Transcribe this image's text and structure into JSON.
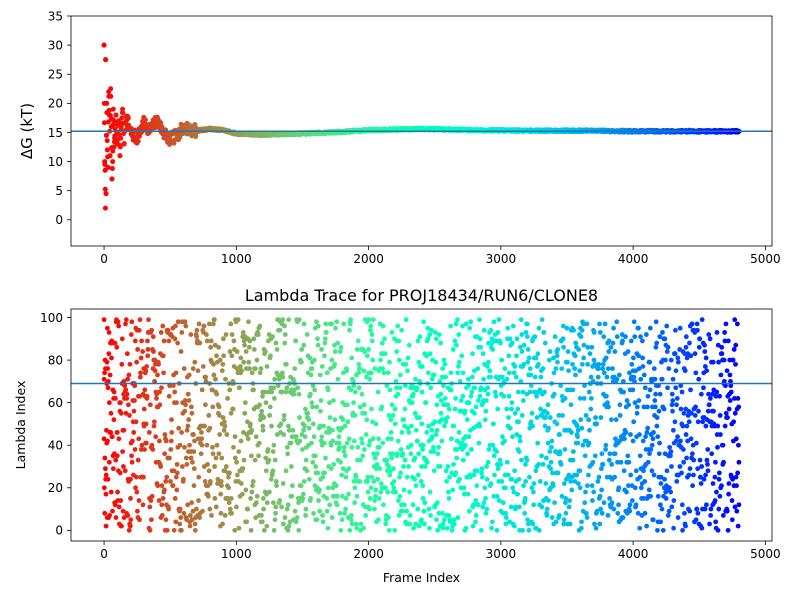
{
  "chart_data": [
    {
      "type": "scatter",
      "title": "",
      "xlabel": "",
      "ylabel": "ΔG (kT)",
      "xlim": [
        -250,
        5050
      ],
      "ylim": [
        -4.5,
        35
      ],
      "xticks": [
        0,
        1000,
        2000,
        3000,
        4000,
        5000
      ],
      "xtick_labels": [
        "0",
        "1000",
        "2000",
        "3000",
        "4000",
        "5000"
      ],
      "yticks": [
        0,
        5,
        10,
        15,
        20,
        25,
        30,
        35
      ],
      "ytick_labels": [
        "0",
        "5",
        "10",
        "15",
        "20",
        "25",
        "30",
        "35"
      ],
      "grid": false,
      "colormap": "rainbow (reversed: red at frame 0, purple at last frame)",
      "frames": 4800,
      "hline": {
        "y": 15.2,
        "color": "#1f77b4"
      },
      "series": [
        {
          "description": "running free-energy estimate, converging toward the horizontal line",
          "points": [
            [
              0,
              30
            ],
            [
              2,
              20
            ],
            [
              5,
              10
            ],
            [
              8,
              8.5
            ],
            [
              10,
              2
            ],
            [
              12,
              27.5
            ],
            [
              15,
              4.5
            ],
            [
              18,
              14.5
            ],
            [
              20,
              20
            ],
            [
              25,
              12
            ],
            [
              30,
              9
            ],
            [
              35,
              22
            ],
            [
              40,
              18
            ],
            [
              45,
              11
            ],
            [
              50,
              22.5
            ],
            [
              55,
              16
            ],
            [
              60,
              7
            ],
            [
              65,
              10
            ],
            [
              70,
              19
            ],
            [
              75,
              12.5
            ],
            [
              80,
              14
            ],
            [
              90,
              18
            ],
            [
              100,
              13
            ],
            [
              110,
              17
            ],
            [
              120,
              11
            ],
            [
              130,
              16
            ],
            [
              140,
              19
            ],
            [
              150,
              13
            ],
            [
              170,
              17.5
            ],
            [
              200,
              15
            ],
            [
              250,
              14
            ],
            [
              300,
              16.5
            ],
            [
              350,
              15.5
            ],
            [
              400,
              17
            ],
            [
              450,
              15
            ],
            [
              500,
              13.8
            ],
            [
              550,
              14.5
            ],
            [
              600,
              15.8
            ],
            [
              700,
              15.3
            ],
            [
              800,
              15.6
            ],
            [
              900,
              15.4
            ],
            [
              1000,
              14.8
            ],
            [
              1200,
              14.6
            ],
            [
              1500,
              14.8
            ],
            [
              1800,
              15.1
            ],
            [
              2000,
              15.4
            ],
            [
              2400,
              15.6
            ],
            [
              2800,
              15.4
            ],
            [
              3200,
              15.3
            ],
            [
              3600,
              15.3
            ],
            [
              4000,
              15.2
            ],
            [
              4400,
              15.2
            ],
            [
              4800,
              15.2
            ]
          ]
        }
      ]
    },
    {
      "type": "scatter",
      "title": "Lambda Trace for PROJ18434/RUN6/CLONE8",
      "xlabel": "Frame Index",
      "ylabel": "Lambda Index",
      "xlim": [
        -250,
        5050
      ],
      "ylim": [
        -5,
        104
      ],
      "xticks": [
        0,
        1000,
        2000,
        3000,
        4000,
        5000
      ],
      "xtick_labels": [
        "0",
        "1000",
        "2000",
        "3000",
        "4000",
        "5000"
      ],
      "yticks": [
        0,
        20,
        40,
        60,
        80,
        100
      ],
      "ytick_labels": [
        "0",
        "20",
        "40",
        "60",
        "80",
        "100"
      ],
      "grid": false,
      "colormap": "rainbow (reversed: red at frame 0, purple at last frame)",
      "frames": 4800,
      "hline": {
        "y": 69,
        "color": "#1f77b4"
      },
      "series": [
        {
          "description": "lambda index sampled per frame, spread roughly uniformly over 0–99",
          "lambda_range": [
            0,
            99
          ],
          "points": [
            [
              0,
              99
            ],
            [
              0,
              43
            ],
            [
              5,
              8
            ],
            [
              10,
              76
            ],
            [
              15,
              2
            ],
            [
              20,
              41
            ],
            [
              25,
              95
            ],
            [
              30,
              24
            ],
            [
              40,
              60
            ],
            [
              60,
              88
            ],
            [
              100,
              35
            ],
            [
              150,
              70
            ],
            [
              200,
              15
            ],
            [
              300,
              50
            ],
            [
              500,
              92
            ],
            [
              800,
              10
            ],
            [
              1200,
              65
            ],
            [
              1600,
              30
            ],
            [
              2000,
              85
            ],
            [
              2400,
              5
            ],
            [
              2800,
              55
            ],
            [
              3200,
              97
            ],
            [
              3600,
              20
            ],
            [
              4000,
              75
            ],
            [
              4400,
              45
            ],
            [
              4800,
              12
            ]
          ]
        }
      ]
    }
  ]
}
